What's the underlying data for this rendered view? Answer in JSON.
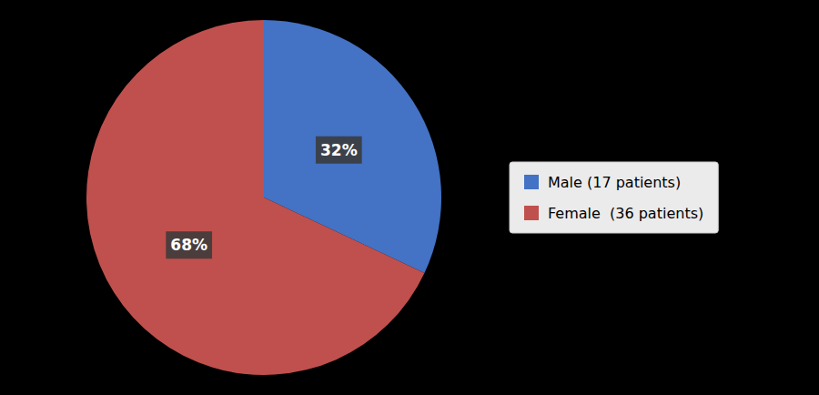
{
  "chart_data": {
    "type": "pie",
    "categories": [
      "Male (17 patients)",
      "Female  (36 patients)"
    ],
    "values": [
      32,
      68
    ],
    "value_labels": [
      "32%",
      "68%"
    ],
    "data_labels": true,
    "colors": [
      "#4472C4",
      "#C0504D"
    ],
    "legend": "right"
  }
}
